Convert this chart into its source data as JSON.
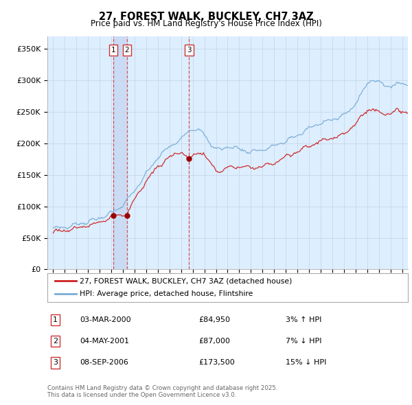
{
  "title": "27, FOREST WALK, BUCKLEY, CH7 3AZ",
  "subtitle": "Price paid vs. HM Land Registry's House Price Index (HPI)",
  "ylabel_ticks": [
    "£0",
    "£50K",
    "£100K",
    "£150K",
    "£200K",
    "£250K",
    "£300K",
    "£350K"
  ],
  "ytick_values": [
    0,
    50000,
    100000,
    150000,
    200000,
    250000,
    300000,
    350000
  ],
  "ylim": [
    0,
    370000
  ],
  "xlim_start": 1994.5,
  "xlim_end": 2025.5,
  "legend_line1": "27, FOREST WALK, BUCKLEY, CH7 3AZ (detached house)",
  "legend_line2": "HPI: Average price, detached house, Flintshire",
  "line_color_red": "#cc2222",
  "line_color_blue": "#7aadd4",
  "vline_color": "#cc4444",
  "grid_color": "#c8d8e8",
  "plot_bg_color": "#ddeeff",
  "bg_color": "#ffffff",
  "transactions": [
    {
      "num": 1,
      "date": "03-MAR-2000",
      "price": 84950,
      "pct": "3%",
      "dir": "↑",
      "year": 2000.17
    },
    {
      "num": 2,
      "date": "04-MAY-2001",
      "price": 87000,
      "pct": "7%",
      "dir": "↓",
      "year": 2001.34
    },
    {
      "num": 3,
      "date": "08-SEP-2006",
      "price": 173500,
      "pct": "15%",
      "dir": "↓",
      "year": 2006.68
    }
  ],
  "footer_line1": "Contains HM Land Registry data © Crown copyright and database right 2025.",
  "footer_line2": "This data is licensed under the Open Government Licence v3.0."
}
